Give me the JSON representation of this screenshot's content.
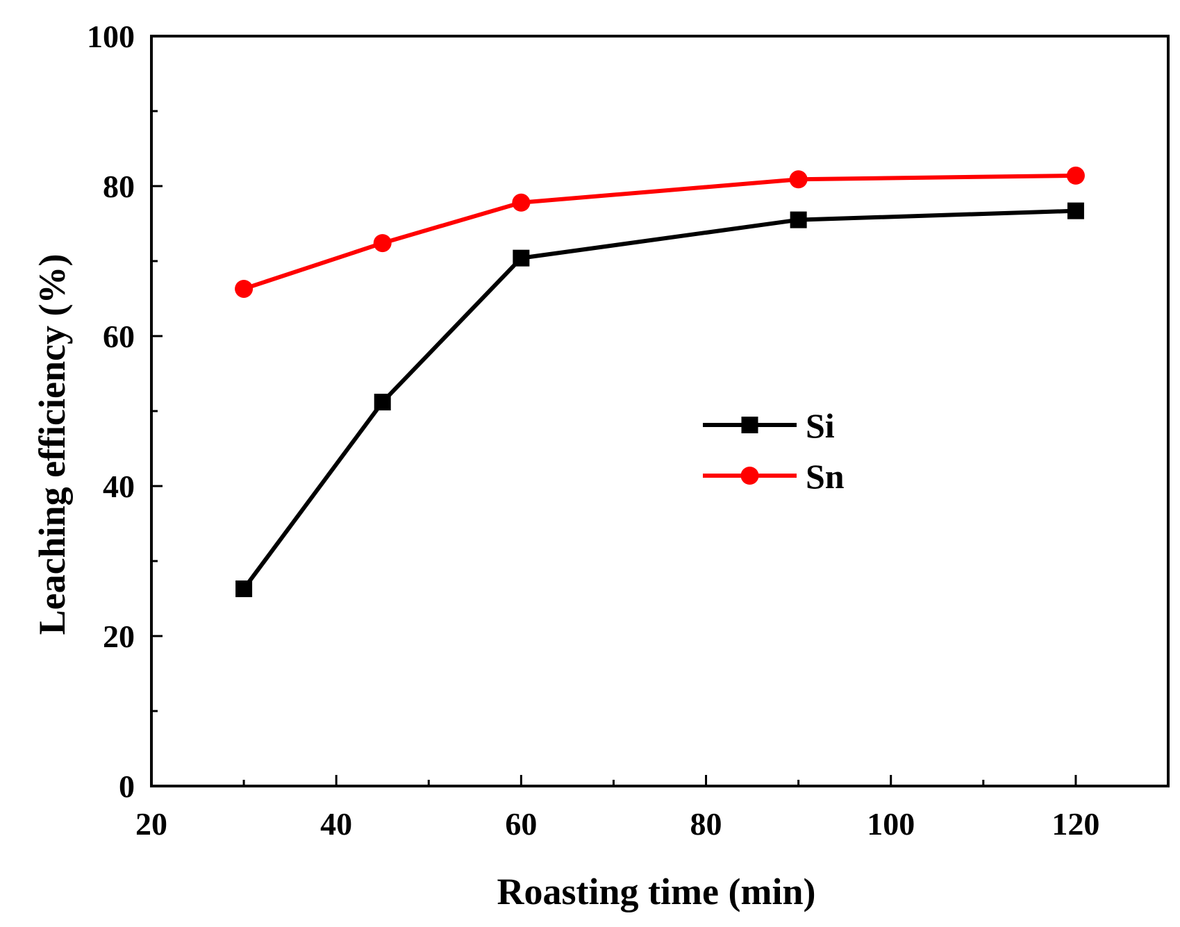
{
  "chart_data": {
    "type": "line",
    "title": "",
    "xlabel": "Roasting time (min)",
    "ylabel": "Leaching efficiency (%)",
    "xlim": [
      20,
      130
    ],
    "ylim": [
      0,
      100
    ],
    "x_ticks": [
      20,
      40,
      60,
      80,
      100,
      120
    ],
    "x_minor_ticks": [
      30,
      50,
      70,
      90,
      110
    ],
    "y_ticks": [
      0,
      20,
      40,
      60,
      80,
      100
    ],
    "y_minor_ticks": [
      10,
      30,
      50,
      70,
      90
    ],
    "grid": false,
    "legend_position": "center-right",
    "series": [
      {
        "name": "Si",
        "marker": "square",
        "color": "#000000",
        "x": [
          30,
          45,
          60,
          90,
          120
        ],
        "y": [
          26.3,
          51.2,
          70.4,
          75.5,
          76.7
        ]
      },
      {
        "name": "Sn",
        "marker": "circle",
        "color": "#ff0000",
        "x": [
          30,
          45,
          60,
          90,
          120
        ],
        "y": [
          66.3,
          72.4,
          77.8,
          80.9,
          81.4
        ]
      }
    ]
  }
}
